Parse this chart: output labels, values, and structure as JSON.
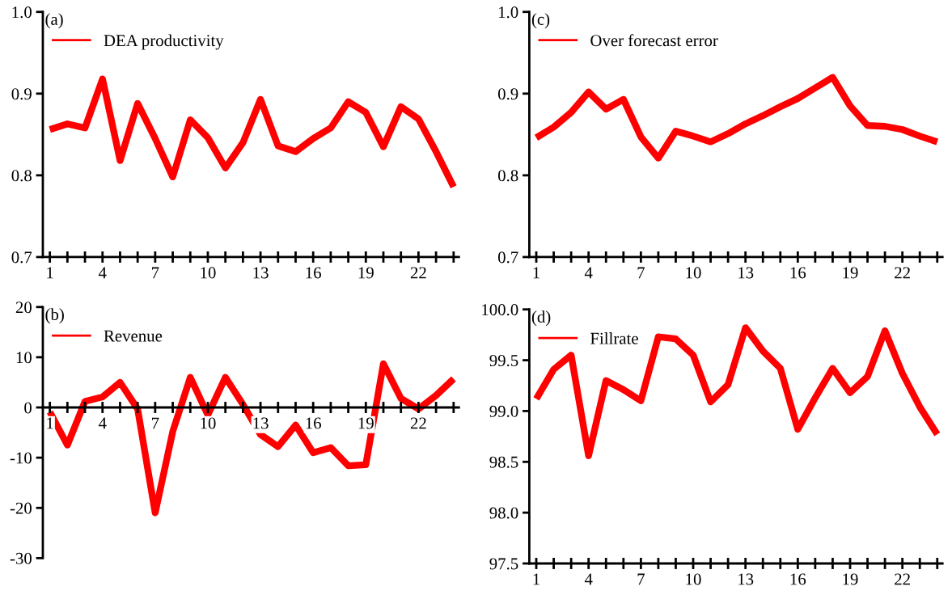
{
  "chart_data": [
    {
      "type": "line",
      "annotations": [
        "(a)"
      ],
      "x": [
        1,
        2,
        3,
        4,
        5,
        6,
        7,
        8,
        9,
        10,
        11,
        12,
        13,
        14,
        15,
        16,
        17,
        18,
        19,
        20,
        21,
        22,
        23,
        24
      ],
      "series": [
        {
          "name": "DEA productivity",
          "color": "#ff0000",
          "values": [
            0.856,
            0.863,
            0.858,
            0.918,
            0.818,
            0.888,
            0.845,
            0.798,
            0.868,
            0.846,
            0.809,
            0.84,
            0.893,
            0.836,
            0.829,
            0.845,
            0.858,
            0.89,
            0.877,
            0.835,
            0.884,
            0.869,
            0.829,
            0.786
          ]
        }
      ],
      "xlim": [
        0.6,
        24.3
      ],
      "xticks": [
        {
          "value": 1,
          "label": "1"
        },
        {
          "value": 2,
          "label": null
        },
        {
          "value": 3,
          "label": null
        },
        {
          "value": 4,
          "label": "4"
        },
        {
          "value": 5,
          "label": null
        },
        {
          "value": 6,
          "label": null
        },
        {
          "value": 7,
          "label": "7"
        },
        {
          "value": 8,
          "label": null
        },
        {
          "value": 9,
          "label": null
        },
        {
          "value": 10,
          "label": "10"
        },
        {
          "value": 11,
          "label": null
        },
        {
          "value": 12,
          "label": null
        },
        {
          "value": 13,
          "label": "13"
        },
        {
          "value": 14,
          "label": null
        },
        {
          "value": 15,
          "label": null
        },
        {
          "value": 16,
          "label": "16"
        },
        {
          "value": 17,
          "label": null
        },
        {
          "value": 18,
          "label": null
        },
        {
          "value": 19,
          "label": "19"
        },
        {
          "value": 20,
          "label": null
        },
        {
          "value": 21,
          "label": null
        },
        {
          "value": 22,
          "label": "22"
        },
        {
          "value": 23,
          "label": null
        },
        {
          "value": 24,
          "label": null
        }
      ],
      "ylim": [
        0.7,
        1.0
      ],
      "yticks": [
        {
          "value": 0.7,
          "label": "0.7"
        },
        {
          "value": 0.8,
          "label": "0.8"
        },
        {
          "value": 0.9,
          "label": "0.9"
        },
        {
          "value": 1.0,
          "label": "1.0"
        }
      ],
      "legend": "top left",
      "grid": false
    },
    {
      "type": "line",
      "annotations": [
        "(c)"
      ],
      "x": [
        1,
        2,
        3,
        4,
        5,
        6,
        7,
        8,
        9,
        10,
        11,
        12,
        13,
        14,
        15,
        16,
        17,
        18,
        19,
        20,
        21,
        22,
        23,
        24
      ],
      "series": [
        {
          "name": "Over forecast error",
          "color": "#ff0000",
          "values": [
            0.846,
            0.859,
            0.877,
            0.902,
            0.881,
            0.893,
            0.847,
            0.821,
            0.854,
            0.848,
            0.841,
            0.851,
            0.863,
            0.873,
            0.884,
            0.894,
            0.907,
            0.92,
            0.885,
            0.861,
            0.86,
            0.856,
            0.848,
            0.841
          ]
        }
      ],
      "xlim": [
        0.6,
        24.3
      ],
      "xticks": [
        {
          "value": 1,
          "label": "1"
        },
        {
          "value": 2,
          "label": null
        },
        {
          "value": 3,
          "label": null
        },
        {
          "value": 4,
          "label": "4"
        },
        {
          "value": 5,
          "label": null
        },
        {
          "value": 6,
          "label": null
        },
        {
          "value": 7,
          "label": "7"
        },
        {
          "value": 8,
          "label": null
        },
        {
          "value": 9,
          "label": null
        },
        {
          "value": 10,
          "label": "10"
        },
        {
          "value": 11,
          "label": null
        },
        {
          "value": 12,
          "label": null
        },
        {
          "value": 13,
          "label": "13"
        },
        {
          "value": 14,
          "label": null
        },
        {
          "value": 15,
          "label": null
        },
        {
          "value": 16,
          "label": "16"
        },
        {
          "value": 17,
          "label": null
        },
        {
          "value": 18,
          "label": null
        },
        {
          "value": 19,
          "label": "19"
        },
        {
          "value": 20,
          "label": null
        },
        {
          "value": 21,
          "label": null
        },
        {
          "value": 22,
          "label": "22"
        },
        {
          "value": 23,
          "label": null
        },
        {
          "value": 24,
          "label": null
        }
      ],
      "ylim": [
        0.7,
        1.0
      ],
      "yticks": [
        {
          "value": 0.7,
          "label": "0.7"
        },
        {
          "value": 0.8,
          "label": "0.8"
        },
        {
          "value": 0.9,
          "label": "0.9"
        },
        {
          "value": 1.0,
          "label": "1.0"
        }
      ],
      "legend": "top left",
      "grid": false
    },
    {
      "type": "line",
      "annotations": [
        "(b)"
      ],
      "x": [
        1,
        2,
        3,
        4,
        5,
        6,
        7,
        8,
        9,
        10,
        11,
        12,
        13,
        14,
        15,
        16,
        17,
        18,
        19,
        20,
        21,
        22,
        23,
        24
      ],
      "series": [
        {
          "name": "Revenue",
          "color": "#ff0000",
          "values": [
            -0.9,
            -7.5,
            1.2,
            2.1,
            5,
            -0.3,
            -21,
            -4.8,
            6,
            -1.5,
            6,
            0.6,
            -5.4,
            -7.8,
            -3.5,
            -9,
            -8,
            -11.6,
            -11.4,
            8.7,
            1.8,
            -0.3,
            2.4,
            5.7
          ]
        }
      ],
      "xlim": [
        0.6,
        24.3
      ],
      "xticks": [
        {
          "value": 1,
          "label": "1"
        },
        {
          "value": 2,
          "label": null
        },
        {
          "value": 3,
          "label": null
        },
        {
          "value": 4,
          "label": "4"
        },
        {
          "value": 5,
          "label": null
        },
        {
          "value": 6,
          "label": null
        },
        {
          "value": 7,
          "label": "7"
        },
        {
          "value": 8,
          "label": null
        },
        {
          "value": 9,
          "label": null
        },
        {
          "value": 10,
          "label": "10"
        },
        {
          "value": 11,
          "label": null
        },
        {
          "value": 12,
          "label": null
        },
        {
          "value": 13,
          "label": "13"
        },
        {
          "value": 14,
          "label": null
        },
        {
          "value": 15,
          "label": null
        },
        {
          "value": 16,
          "label": "16"
        },
        {
          "value": 17,
          "label": null
        },
        {
          "value": 18,
          "label": null
        },
        {
          "value": 19,
          "label": "19"
        },
        {
          "value": 20,
          "label": null
        },
        {
          "value": 21,
          "label": null
        },
        {
          "value": 22,
          "label": "22"
        },
        {
          "value": 23,
          "label": null
        },
        {
          "value": 24,
          "label": null
        }
      ],
      "ylim": [
        -30,
        20
      ],
      "yticks": [
        -30,
        -20,
        -10,
        0,
        10,
        20
      ],
      "legend": "top left",
      "grid": false
    },
    {
      "type": "line",
      "annotations": [
        "(d)"
      ],
      "x": [
        1,
        2,
        3,
        4,
        5,
        6,
        7,
        8,
        9,
        10,
        11,
        12,
        13,
        14,
        15,
        16,
        17,
        18,
        19,
        20,
        21,
        22,
        23,
        24
      ],
      "series": [
        {
          "name": "Fillrate",
          "color": "#ff0000",
          "values": [
            99.12,
            99.41,
            99.55,
            98.56,
            99.3,
            99.21,
            99.1,
            99.73,
            99.71,
            99.55,
            99.09,
            99.26,
            99.82,
            99.59,
            99.42,
            98.82,
            99.13,
            99.42,
            99.18,
            99.34,
            99.79,
            99.37,
            99.04,
            98.77
          ]
        }
      ],
      "xlim": [
        0.6,
        24.3
      ],
      "xticks": [
        {
          "value": 1,
          "label": "1"
        },
        {
          "value": 2,
          "label": null
        },
        {
          "value": 3,
          "label": null
        },
        {
          "value": 4,
          "label": "4"
        },
        {
          "value": 5,
          "label": null
        },
        {
          "value": 6,
          "label": null
        },
        {
          "value": 7,
          "label": "7"
        },
        {
          "value": 8,
          "label": null
        },
        {
          "value": 9,
          "label": null
        },
        {
          "value": 10,
          "label": "10"
        },
        {
          "value": 11,
          "label": null
        },
        {
          "value": 12,
          "label": null
        },
        {
          "value": 13,
          "label": "13"
        },
        {
          "value": 14,
          "label": null
        },
        {
          "value": 15,
          "label": null
        },
        {
          "value": 16,
          "label": "16"
        },
        {
          "value": 17,
          "label": null
        },
        {
          "value": 18,
          "label": null
        },
        {
          "value": 19,
          "label": "19"
        },
        {
          "value": 20,
          "label": null
        },
        {
          "value": 21,
          "label": null
        },
        {
          "value": 22,
          "label": "22"
        },
        {
          "value": 23,
          "label": null
        },
        {
          "value": 24,
          "label": null
        }
      ],
      "ylim": [
        97.5,
        100.0
      ],
      "yticks": [
        {
          "value": 97.5,
          "label": "97.5"
        },
        {
          "value": 98.0,
          "label": "98.0"
        },
        {
          "value": 98.5,
          "label": "98.5"
        },
        {
          "value": 99.0,
          "label": "99.0"
        },
        {
          "value": 99.5,
          "label": "99.5"
        },
        {
          "value": 100.0,
          "label": "100.0"
        }
      ],
      "legend": "top left",
      "grid": false
    }
  ]
}
